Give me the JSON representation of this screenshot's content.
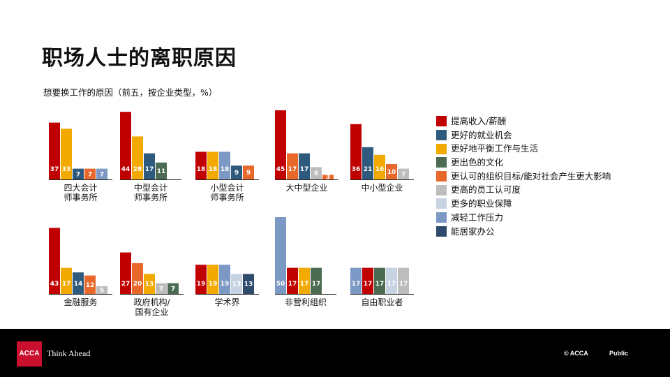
{
  "slide": {
    "title": "职场人士的离职原因",
    "subtitle": "想要换工作的原因（前五，按企业类型，%）"
  },
  "legend": [
    {
      "label": "提高收入/薪酬",
      "color": "#c00000"
    },
    {
      "label": "更好的就业机会",
      "color": "#2e5a7e"
    },
    {
      "label": "更好地平衡工作与生活",
      "color": "#f2a900"
    },
    {
      "label": "更出色的文化",
      "color": "#4b6c52"
    },
    {
      "label": "更认可的组织目标/能对社会产生更大影响",
      "color": "#e8672a"
    },
    {
      "label": "更高的员工认可度",
      "color": "#bdbdbd"
    },
    {
      "label": "更多的职业保障",
      "color": "#c7d3e3"
    },
    {
      "label": "减轻工作压力",
      "color": "#7c98c4"
    },
    {
      "label": "能居家办公",
      "color": "#2f4a6d"
    }
  ],
  "chart_data": [
    {
      "type": "bar",
      "category": [
        "四大会计",
        "师事务所"
      ],
      "series": [
        "提高收入/薪酬",
        "更好地平衡工作与生活",
        "更好的就业机会",
        "更认可的组织目标/能对社会产生更大影响",
        "减轻工作压力"
      ],
      "values": [
        37,
        33,
        7,
        7,
        7
      ]
    },
    {
      "type": "bar",
      "category": [
        "中型会计",
        "师事务所"
      ],
      "series": [
        "提高收入/薪酬",
        "更好地平衡工作与生活",
        "更好的就业机会",
        "更出色的文化"
      ],
      "values": [
        44,
        28,
        17,
        11
      ]
    },
    {
      "type": "bar",
      "category": [
        "小型会计",
        "师事务所"
      ],
      "series": [
        "提高收入/薪酬",
        "更好地平衡工作与生活",
        "减轻工作压力",
        "更好的就业机会",
        "更认可的组织目标/能对社会产生更大影响"
      ],
      "values": [
        18,
        18,
        18,
        9,
        9
      ]
    },
    {
      "type": "bar",
      "category": [
        "大中型企业"
      ],
      "series": [
        "提高收入/薪酬",
        "更认可的组织目标/能对社会产生更大影响",
        "更好的就业机会",
        "更高的员工认可度",
        "更认可的组织目标/能对社会产生更大影响"
      ],
      "values": [
        45,
        17,
        17,
        8,
        3
      ]
    },
    {
      "type": "bar",
      "category": [
        "中小型企业"
      ],
      "series": [
        "提高收入/薪酬",
        "更好的就业机会",
        "更好地平衡工作与生活",
        "更认可的组织目标/能对社会产生更大影响",
        "更高的员工认可度"
      ],
      "values": [
        36,
        21,
        16,
        10,
        7
      ]
    },
    {
      "type": "bar",
      "category": [
        "金融服务"
      ],
      "series": [
        "提高收入/薪酬",
        "更好地平衡工作与生活",
        "更好的就业机会",
        "更认可的组织目标/能对社会产生更大影响",
        "更高的员工认可度"
      ],
      "values": [
        43,
        17,
        14,
        12,
        5
      ]
    },
    {
      "type": "bar",
      "category": [
        "政府机构/",
        "国有企业"
      ],
      "series": [
        "提高收入/薪酬",
        "更认可的组织目标/能对社会产生更大影响",
        "更好地平衡工作与生活",
        "更高的员工认可度",
        "更出色的文化"
      ],
      "values": [
        27,
        20,
        13,
        7,
        7
      ]
    },
    {
      "type": "bar",
      "category": [
        "学术界"
      ],
      "series": [
        "提高收入/薪酬",
        "更好地平衡工作与生活",
        "减轻工作压力",
        "更多的职业保障",
        "能居家办公"
      ],
      "values": [
        19,
        19,
        19,
        13,
        13
      ]
    },
    {
      "type": "bar",
      "category": [
        "非营利组织"
      ],
      "series": [
        "减轻工作压力",
        "提高收入/薪酬",
        "更好地平衡工作与生活",
        "更出色的文化"
      ],
      "values": [
        50,
        17,
        17,
        17
      ]
    },
    {
      "type": "bar",
      "category": [
        "自由职业者"
      ],
      "series": [
        "减轻工作压力",
        "提高收入/薪酬",
        "更出色的文化",
        "更多的职业保障",
        "更高的员工认可度"
      ],
      "values": [
        17,
        17,
        17,
        17,
        17
      ]
    }
  ],
  "footer": {
    "logo_text": "ACCA",
    "tagline": "Think Ahead",
    "copyright": "© ACCA",
    "classification": "Public"
  }
}
